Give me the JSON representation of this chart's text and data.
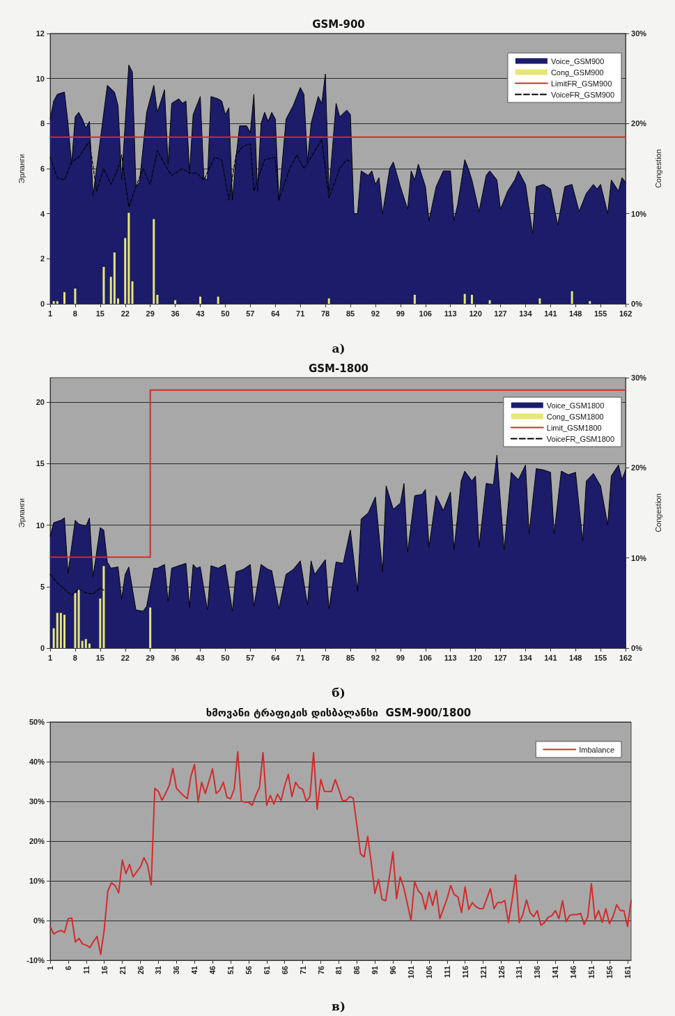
{
  "chart_data": [
    {
      "type": "area",
      "title": "GSM-900",
      "ylabel": "Эрланги",
      "y2label": "Congestion",
      "annotations": [
        "а)"
      ],
      "xlim": [
        1,
        162
      ],
      "xticks": [
        1,
        8,
        15,
        22,
        29,
        36,
        43,
        50,
        57,
        64,
        71,
        78,
        85,
        92,
        99,
        106,
        113,
        120,
        127,
        134,
        141,
        148,
        155,
        162
      ],
      "ylim": [
        0,
        12
      ],
      "yticks": [
        0,
        2,
        4,
        6,
        8,
        10,
        12
      ],
      "y2lim": [
        0,
        30
      ],
      "y2ticks": [
        {
          "value": 0,
          "label": "0%"
        },
        {
          "value": 10,
          "label": "10%"
        },
        {
          "value": 20,
          "label": "20%"
        },
        {
          "value": 30,
          "label": "30%"
        }
      ],
      "grid": "y",
      "legend": "top right",
      "marker": "none",
      "series": [
        {
          "name": "Voice_GSM900",
          "type": "area",
          "color": "#1c1c6b",
          "x": [
            1,
            2,
            3,
            5,
            6,
            7,
            8,
            9,
            10,
            11,
            12,
            13,
            17,
            19,
            20,
            21,
            23,
            24,
            25,
            26,
            28,
            30,
            31,
            33,
            34,
            35,
            37,
            38,
            39,
            40,
            41,
            43,
            44,
            45,
            46,
            48,
            49,
            50,
            51,
            52,
            53,
            54,
            56,
            57,
            58,
            59,
            60,
            61,
            62,
            63,
            64,
            65,
            67,
            69,
            71,
            72,
            73,
            74,
            76,
            77,
            78,
            79,
            81,
            82,
            84,
            85,
            86,
            87,
            88,
            90,
            91,
            92,
            93,
            94,
            96,
            97,
            99,
            101,
            102,
            103,
            104,
            106,
            107,
            109,
            111,
            113,
            114,
            115,
            117,
            118,
            119,
            121,
            123,
            124,
            125,
            126,
            127,
            129,
            131,
            132,
            134,
            136,
            137,
            139,
            141,
            143,
            145,
            147,
            149,
            151,
            153,
            154,
            155,
            157,
            158,
            160,
            161,
            162
          ],
          "values": [
            8.2,
            9.0,
            9.3,
            9.4,
            8.0,
            6.2,
            8.3,
            8.5,
            8.2,
            7.8,
            8.1,
            4.8,
            9.7,
            9.4,
            8.8,
            5.5,
            10.6,
            10.3,
            5.2,
            5.4,
            8.5,
            9.7,
            8.5,
            9.5,
            6.2,
            8.9,
            9.1,
            8.9,
            9.0,
            5.8,
            8.4,
            9.2,
            5.6,
            5.5,
            9.2,
            9.1,
            9.0,
            8.4,
            8.7,
            4.6,
            6.5,
            7.9,
            7.9,
            7.6,
            9.3,
            5.0,
            8.0,
            8.5,
            8.1,
            8.5,
            8.2,
            4.6,
            8.2,
            8.8,
            9.6,
            9.3,
            6.3,
            8.0,
            9.2,
            8.9,
            10.2,
            5.0,
            8.9,
            8.3,
            8.6,
            8.4,
            4.0,
            4.0,
            5.9,
            5.7,
            5.9,
            5.3,
            5.6,
            4.0,
            6.0,
            6.3,
            5.2,
            4.2,
            5.9,
            5.5,
            6.2,
            5.2,
            3.7,
            5.2,
            5.9,
            5.9,
            3.7,
            4.4,
            6.4,
            6.0,
            5.5,
            4.1,
            5.7,
            5.9,
            5.7,
            5.5,
            4.2,
            5.0,
            5.5,
            5.9,
            5.3,
            3.1,
            5.2,
            5.3,
            5.1,
            3.5,
            5.2,
            5.3,
            4.1,
            4.9,
            5.3,
            5.1,
            5.3,
            4.0,
            5.5,
            5.0,
            5.6,
            5.4
          ]
        },
        {
          "name": "Cong_GSM900",
          "type": "bar",
          "axis": "y2",
          "color": "#e6e67a",
          "x": [
            2,
            3,
            5,
            8,
            16,
            18,
            19,
            20,
            22,
            23,
            24,
            30,
            31,
            36,
            43,
            48,
            79,
            103,
            117,
            119,
            124,
            138,
            147,
            152
          ],
          "values": [
            0.3,
            0.3,
            1.3,
            1.7,
            4.1,
            3.0,
            5.7,
            0.6,
            7.3,
            10.1,
            2.5,
            9.4,
            1.0,
            0.4,
            0.8,
            0.8,
            0.6,
            1.0,
            1.1,
            1.0,
            0.4,
            0.6,
            1.4,
            0.3
          ]
        },
        {
          "name": "LimitFR_GSM900",
          "type": "line",
          "color": "#d42a2a",
          "x": [
            1,
            162
          ],
          "values": [
            7.4,
            7.4
          ]
        },
        {
          "name": "VoiceFR_GSM900",
          "type": "line",
          "color": "#000000",
          "line_style": "dashed",
          "x": [
            1,
            3,
            5,
            7,
            9,
            11,
            12,
            14,
            16,
            18,
            20,
            21,
            23,
            25,
            27,
            29,
            31,
            33,
            35,
            38,
            40,
            42,
            44,
            47,
            49,
            51,
            53,
            55,
            57,
            58,
            61,
            64,
            65,
            68,
            70,
            72,
            74,
            77,
            79,
            82,
            84,
            85
          ],
          "values": [
            6.5,
            5.6,
            5.5,
            6.3,
            6.5,
            7.0,
            7.2,
            5.0,
            6.0,
            5.3,
            6.0,
            6.6,
            4.3,
            5.2,
            6.0,
            5.3,
            6.8,
            6.2,
            5.7,
            6.0,
            5.8,
            5.8,
            5.5,
            6.5,
            6.4,
            4.6,
            6.6,
            7.0,
            7.1,
            5.0,
            6.4,
            6.5,
            4.6,
            6.0,
            6.6,
            6.0,
            6.5,
            7.3,
            4.7,
            6.0,
            6.4,
            6.3
          ]
        }
      ]
    },
    {
      "type": "area",
      "title": "GSM-1800",
      "ylabel": "Эрланги",
      "y2label": "Congestion",
      "annotations": [
        "б)"
      ],
      "xlim": [
        1,
        162
      ],
      "xticks": [
        1,
        8,
        15,
        22,
        29,
        36,
        43,
        50,
        57,
        64,
        71,
        78,
        85,
        92,
        99,
        106,
        113,
        120,
        127,
        134,
        141,
        148,
        155,
        162
      ],
      "ylim": [
        0,
        22
      ],
      "yticks": [
        0,
        5,
        10,
        15,
        20
      ],
      "y2lim": [
        0,
        30
      ],
      "y2ticks": [
        {
          "value": 0,
          "label": "0%"
        },
        {
          "value": 10,
          "label": "10%"
        },
        {
          "value": 20,
          "label": "20%"
        },
        {
          "value": 30,
          "label": "30%"
        }
      ],
      "grid": "y",
      "legend": "top right",
      "marker": "none",
      "series": [
        {
          "name": "Voice_GSM1800",
          "type": "area",
          "color": "#1c1c6b",
          "x": [
            1,
            2,
            4,
            5,
            6,
            8,
            9,
            11,
            12,
            13,
            15,
            16,
            17,
            18,
            20,
            21,
            22,
            23,
            25,
            27,
            28,
            30,
            31,
            33,
            34,
            35,
            38,
            39,
            40,
            41,
            42,
            43,
            45,
            46,
            48,
            50,
            52,
            53,
            55,
            57,
            58,
            60,
            62,
            63,
            65,
            67,
            69,
            71,
            73,
            74,
            75,
            78,
            79,
            81,
            83,
            85,
            87,
            88,
            90,
            92,
            94,
            95,
            97,
            99,
            100,
            101,
            103,
            105,
            106,
            107,
            109,
            111,
            113,
            114,
            116,
            117,
            119,
            120,
            121,
            123,
            125,
            126,
            128,
            130,
            132,
            134,
            135,
            137,
            139,
            141,
            142,
            144,
            146,
            148,
            150,
            151,
            153,
            155,
            157,
            158,
            160,
            161,
            162
          ],
          "values": [
            9.1,
            10.2,
            10.4,
            10.6,
            6.1,
            10.4,
            10.1,
            9.9,
            10.6,
            5.8,
            9.8,
            9.6,
            7.0,
            6.5,
            6.6,
            4.0,
            6.0,
            6.6,
            3.1,
            3.0,
            3.4,
            6.5,
            6.5,
            6.8,
            3.8,
            6.5,
            6.8,
            6.9,
            3.3,
            6.8,
            6.5,
            6.6,
            3.1,
            6.7,
            6.5,
            6.8,
            3.0,
            6.2,
            6.4,
            6.8,
            3.4,
            6.8,
            6.4,
            6.3,
            3.2,
            6.0,
            6.4,
            7.1,
            3.5,
            7.1,
            6.0,
            7.2,
            3.2,
            7.0,
            6.9,
            9.6,
            4.6,
            10.5,
            11.0,
            12.3,
            6.2,
            13.2,
            11.3,
            11.8,
            13.4,
            7.8,
            12.4,
            12.5,
            12.9,
            8.2,
            12.4,
            11.2,
            12.7,
            8.0,
            13.6,
            14.4,
            13.6,
            14.0,
            8.2,
            13.4,
            13.3,
            15.7,
            8.0,
            14.3,
            13.7,
            14.9,
            9.3,
            14.6,
            14.5,
            14.3,
            9.3,
            14.4,
            14.1,
            14.3,
            8.7,
            13.6,
            14.2,
            13.2,
            10.0,
            14.0,
            14.9,
            13.7,
            14.5
          ]
        },
        {
          "name": "Cong_GSM1800",
          "type": "bar",
          "axis": "y2",
          "color": "#e6e67a",
          "x": [
            2,
            3,
            4,
            5,
            8,
            9,
            10,
            11,
            12,
            15,
            16,
            29
          ],
          "values": [
            2.2,
            3.9,
            3.9,
            3.7,
            6.1,
            6.5,
            0.8,
            1.0,
            0.5,
            5.5,
            9.1,
            4.5
          ]
        },
        {
          "name": "Limit_GSM1800",
          "type": "step",
          "color": "#d42a2a",
          "x": [
            1,
            29,
            162
          ],
          "values": [
            7.4,
            21,
            21
          ]
        },
        {
          "name": "VoiceFR_GSM1800",
          "type": "line",
          "color": "#000000",
          "line_style": "dashed",
          "x": [
            1,
            3,
            5,
            7,
            9,
            11,
            13,
            15,
            16
          ],
          "values": [
            6.0,
            5.3,
            4.8,
            4.3,
            4.8,
            4.5,
            4.4,
            4.9,
            4.7
          ]
        }
      ]
    },
    {
      "type": "line",
      "title": "ხმოვანი ტრაფიკის დისბალანსი  GSM-900/1800",
      "annotations": [
        "в)"
      ],
      "xlim": [
        1,
        162
      ],
      "xticks": [
        1,
        6,
        11,
        16,
        21,
        26,
        31,
        36,
        41,
        46,
        51,
        56,
        61,
        66,
        71,
        76,
        81,
        86,
        91,
        96,
        101,
        106,
        111,
        116,
        121,
        126,
        131,
        136,
        141,
        146,
        151,
        156,
        161
      ],
      "ylim": [
        -10,
        50
      ],
      "yticks": [
        {
          "value": -10,
          "label": "-10%"
        },
        {
          "value": 0,
          "label": "0%"
        },
        {
          "value": 10,
          "label": "10%"
        },
        {
          "value": 20,
          "label": "20%"
        },
        {
          "value": 30,
          "label": "30%"
        },
        {
          "value": 40,
          "label": "40%"
        },
        {
          "value": 50,
          "label": "50%"
        }
      ],
      "grid": "y",
      "legend": "top right",
      "marker": "none",
      "x": [
        1,
        2,
        3,
        4,
        5,
        6,
        7,
        8,
        9,
        10,
        11,
        12,
        13,
        14,
        15,
        16,
        17,
        18,
        19,
        20,
        21,
        22,
        23,
        24,
        25,
        26,
        27,
        28,
        29,
        30,
        31,
        32,
        33,
        34,
        35,
        36,
        37,
        38,
        39,
        40,
        41,
        42,
        43,
        44,
        45,
        46,
        47,
        48,
        49,
        50,
        51,
        52,
        53,
        54,
        55,
        56,
        57,
        58,
        59,
        60,
        61,
        62,
        63,
        64,
        65,
        66,
        67,
        68,
        69,
        70,
        71,
        72,
        73,
        74,
        75,
        76,
        77,
        78,
        79,
        80,
        81,
        82,
        83,
        84,
        85,
        86,
        87,
        88,
        89,
        90,
        91,
        92,
        93,
        94,
        95,
        96,
        97,
        98,
        99,
        100,
        101,
        102,
        103,
        104,
        105,
        106,
        107,
        108,
        109,
        110,
        111,
        112,
        113,
        114,
        115,
        116,
        117,
        118,
        119,
        120,
        121,
        122,
        123,
        124,
        125,
        126,
        127,
        128,
        129,
        130,
        131,
        132,
        133,
        134,
        135,
        136,
        137,
        138,
        139,
        140,
        141,
        142,
        143,
        144,
        145,
        146,
        147,
        148,
        149,
        150,
        151,
        152,
        153,
        154,
        155,
        156,
        157,
        158,
        159,
        160,
        161,
        162
      ],
      "series": [
        {
          "name": "Imbalance",
          "color": "#d42a2a",
          "values": [
            -1.5,
            -3.4,
            -2.8,
            -2.5,
            -3.0,
            0.5,
            0.6,
            -5.4,
            -4.5,
            -5.9,
            -6.2,
            -6.8,
            -5.3,
            -4.0,
            -8.5,
            -2.2,
            7.5,
            9.5,
            8.8,
            7.0,
            15.2,
            11.8,
            14.1,
            11.0,
            12.3,
            13.5,
            15.8,
            14.0,
            9.0,
            33.3,
            32.5,
            30.3,
            32.0,
            34.0,
            38.3,
            33.3,
            32.3,
            31.4,
            30.7,
            36.3,
            39.3,
            29.8,
            34.8,
            32.0,
            35.0,
            38.2,
            32.0,
            32.8,
            34.8,
            31.0,
            30.7,
            33.0,
            42.5,
            30.0,
            29.8,
            29.8,
            29.0,
            31.5,
            33.5,
            42.3,
            29.0,
            31.5,
            29.3,
            31.8,
            30.2,
            34.0,
            36.8,
            31.2,
            34.8,
            33.5,
            33.0,
            30.0,
            31.2,
            42.3,
            28.0,
            35.5,
            32.5,
            32.5,
            32.5,
            35.5,
            33.0,
            30.2,
            30.2,
            31.2,
            30.8,
            24.0,
            16.8,
            16.0,
            21.2,
            14.5,
            6.8,
            10.3,
            5.3,
            5.0,
            11.0,
            17.3,
            5.5,
            11.0,
            8.3,
            4.2,
            0.0,
            9.8,
            7.5,
            6.5,
            2.8,
            7.2,
            3.8,
            7.5,
            0.5,
            3.0,
            5.5,
            8.8,
            6.5,
            6.0,
            2.0,
            8.5,
            2.8,
            4.5,
            3.5,
            3.0,
            3.0,
            5.5,
            8.0,
            3.0,
            4.5,
            4.5,
            5.0,
            -0.5,
            5.0,
            11.5,
            -0.5,
            1.5,
            5.2,
            2.0,
            1.0,
            2.5,
            -1.2,
            -0.5,
            0.8,
            1.2,
            2.5,
            0.5,
            5.0,
            -0.3,
            1.3,
            1.5,
            1.5,
            1.8,
            -1.0,
            1.0,
            9.3,
            0.3,
            2.5,
            -0.5,
            3.0,
            -0.8,
            1.0,
            4.0,
            2.5,
            2.5,
            -1.5,
            5.0
          ]
        }
      ]
    }
  ]
}
